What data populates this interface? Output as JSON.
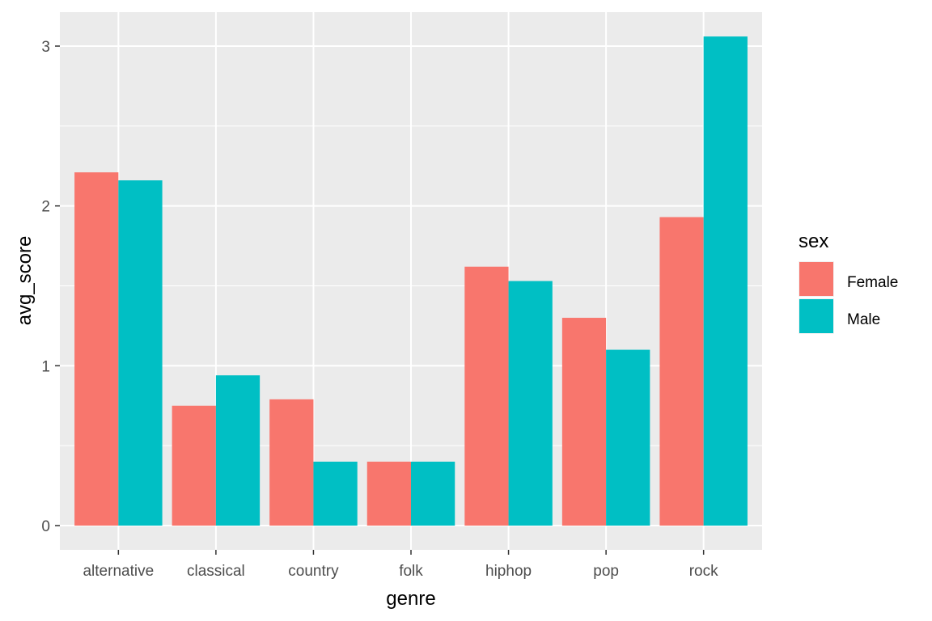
{
  "chart_data": {
    "type": "bar",
    "xlabel": "genre",
    "ylabel": "avg_score",
    "categories": [
      "alternative",
      "classical",
      "country",
      "folk",
      "hiphop",
      "pop",
      "rock"
    ],
    "series": [
      {
        "name": "Female",
        "color": "#F8766D",
        "values": [
          2.21,
          0.75,
          0.79,
          0.4,
          1.62,
          1.3,
          1.93
        ]
      },
      {
        "name": "Male",
        "color": "#00BFC4",
        "values": [
          2.16,
          0.94,
          0.4,
          0.4,
          1.53,
          1.1,
          3.06
        ]
      }
    ],
    "ylim": [
      -0.15,
      3.2
    ],
    "yticks": [
      0,
      1,
      2,
      3
    ],
    "ytick_labels": [
      "0",
      "1",
      "2",
      "3"
    ],
    "grid": true,
    "panel_background": "#EBEBEB",
    "gridline_color": "#FFFFFF",
    "legend": {
      "title": "sex",
      "position": "right",
      "items": [
        "Female",
        "Male"
      ]
    }
  }
}
